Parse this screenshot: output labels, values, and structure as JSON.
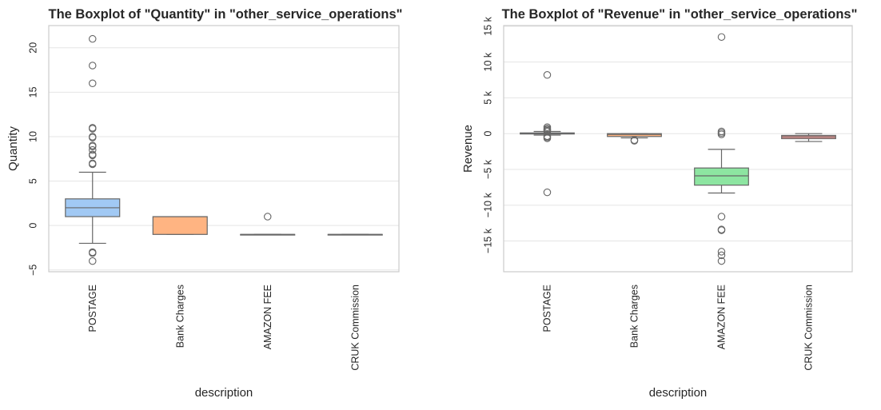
{
  "colors": {
    "palette": [
      "#a1c9f4",
      "#ffb482",
      "#8de5a1",
      "#ff9f9b"
    ],
    "box_edge": "#666666",
    "grid": "#e5e5e5",
    "frame": "#cccccc"
  },
  "chart_data": [
    {
      "type": "boxplot",
      "title": "The Boxplot of \"Quantity\" in \"other_service_operations\"",
      "xlabel": "description",
      "ylabel": "Quantity",
      "ylim": [
        -5.2,
        22.5
      ],
      "yticks": [
        -5,
        0,
        5,
        10,
        15,
        20
      ],
      "ytick_labels": [
        "−5",
        "0",
        "5",
        "10",
        "15",
        "20"
      ],
      "grid": "horizontal",
      "categories": [
        "POSTAGE",
        "Bank Charges",
        "AMAZON FEE",
        "CRUK Commission"
      ],
      "boxes": [
        {
          "category": "POSTAGE",
          "whislo": -2,
          "q1": 1,
          "med": 2,
          "q3": 3,
          "whishi": 6,
          "fliers": [
            21,
            18,
            16,
            11,
            10.9,
            10,
            9.9,
            9,
            8.9,
            8.5,
            8,
            7.9,
            7,
            6.9,
            -3,
            -3.1,
            -4
          ]
        },
        {
          "category": "Bank Charges",
          "whislo": -1,
          "q1": -1,
          "med": 1,
          "q3": 1,
          "whishi": 1,
          "fliers": []
        },
        {
          "category": "AMAZON FEE",
          "whislo": -1,
          "q1": -1,
          "med": -1,
          "q3": -1,
          "whishi": -1,
          "fliers": [
            1
          ]
        },
        {
          "category": "CRUK Commission",
          "whislo": -1,
          "q1": -1,
          "med": -1,
          "q3": -1,
          "whishi": -1,
          "fliers": []
        }
      ]
    },
    {
      "type": "boxplot",
      "title": "The Boxplot of \"Revenue\" in \"other_service_operations\"",
      "xlabel": "description",
      "ylabel": "Revenue",
      "ylim": [
        -19300,
        15100
      ],
      "yticks": [
        -15000,
        -10000,
        -5000,
        0,
        5000,
        10000,
        15000
      ],
      "ytick_labels": [
        "−15 k",
        "−10 k",
        "−5 k",
        "0",
        "5 k",
        "10 k",
        "15 k"
      ],
      "grid": "horizontal",
      "categories": [
        "POSTAGE",
        "Bank Charges",
        "AMAZON FEE",
        "CRUK Commission"
      ],
      "boxes": [
        {
          "category": "POSTAGE",
          "whislo": -200,
          "q1": -50,
          "med": 0,
          "q3": 100,
          "whishi": 300,
          "fliers": [
            8200,
            900,
            700,
            550,
            400,
            300,
            -350,
            -500,
            -650,
            -8200
          ]
        },
        {
          "category": "Bank Charges",
          "whislo": -600,
          "q1": -400,
          "med": -100,
          "q3": 0,
          "whishi": 0,
          "fliers": [
            -900,
            -1000
          ]
        },
        {
          "category": "AMAZON FEE",
          "whislo": -8300,
          "q1": -7200,
          "med": -5900,
          "q3": -4800,
          "whishi": -2200,
          "fliers": [
            13500,
            300,
            100,
            -100,
            -11600,
            -13400,
            -13500,
            -16500,
            -17000,
            -17800
          ]
        },
        {
          "category": "CRUK Commission",
          "whislo": -1100,
          "q1": -700,
          "med": -450,
          "q3": -250,
          "whishi": 0,
          "fliers": []
        }
      ]
    }
  ]
}
